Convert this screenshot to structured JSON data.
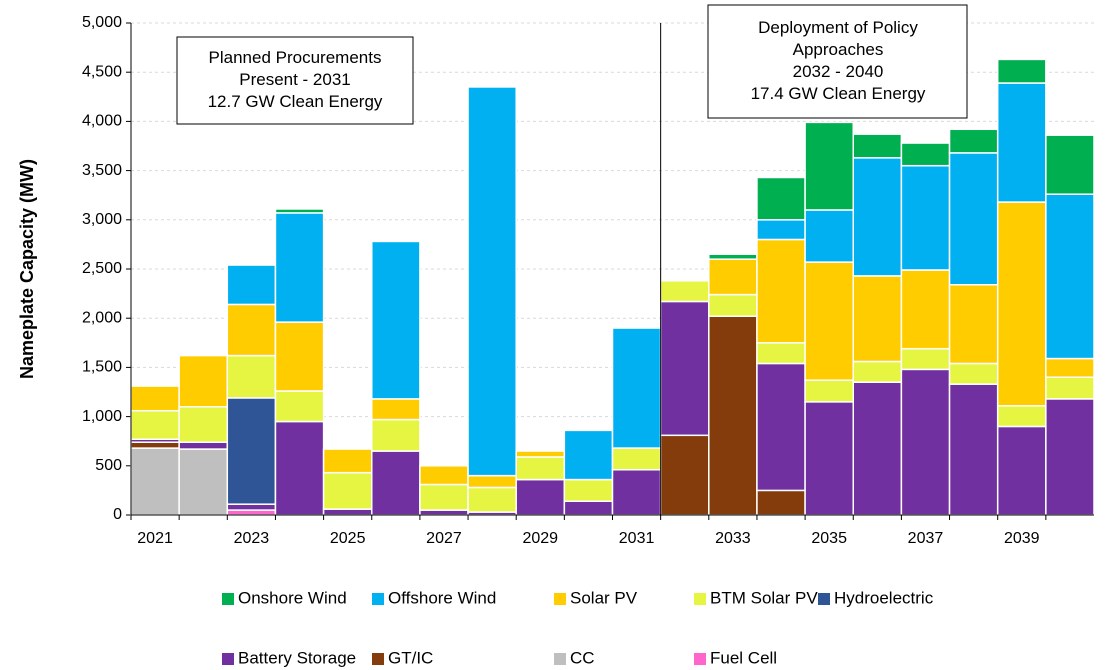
{
  "chart_data": {
    "type": "stacked_bar",
    "y_label": "Nameplate Capacity (MW)",
    "categories": [
      "2021",
      null,
      "2023",
      null,
      "2025",
      null,
      "2027",
      null,
      "2029",
      null,
      "2031",
      null,
      "2033",
      null,
      "2035",
      null,
      "2037",
      null,
      "2039",
      null
    ],
    "ylim": [
      0,
      5000
    ],
    "yticks": [
      0,
      500,
      {
        "value": 1000,
        "label": "1,000"
      },
      {
        "value": 1500,
        "label": "1,500"
      },
      {
        "value": 2000,
        "label": "2,000"
      },
      {
        "value": 2500,
        "label": "2,500"
      },
      {
        "value": 3000,
        "label": "3,000"
      },
      {
        "value": 3500,
        "label": "3,500"
      },
      {
        "value": 4000,
        "label": "4,000"
      },
      {
        "value": 4500,
        "label": "4,500"
      },
      {
        "value": 5000,
        "label": "5,000"
      }
    ],
    "grid": true,
    "legend": "bottom",
    "annotations": [
      {
        "lines": [
          "Planned Procurements",
          "Present - 2031",
          "12.7 GW Clean Energy"
        ]
      },
      {
        "lines": [
          "Deployment of Policy",
          "Approaches",
          "2032 - 2040",
          "17.4 GW Clean Energy"
        ]
      }
    ],
    "series": [
      {
        "name": "Onshore Wind",
        "color": "#00b050",
        "values": [
          0,
          0,
          0,
          40,
          0,
          0,
          0,
          0,
          0,
          0,
          0,
          0,
          50,
          430,
          890,
          240,
          230,
          240,
          240,
          600
        ]
      },
      {
        "name": "Offshore Wind",
        "color": "#00b0f0",
        "values": [
          0,
          0,
          400,
          1110,
          0,
          1600,
          0,
          3950,
          0,
          500,
          1220,
          0,
          0,
          200,
          530,
          1200,
          1060,
          1340,
          1210,
          1670
        ]
      },
      {
        "name": "Solar PV",
        "color": "#ffcc00",
        "values": [
          250,
          520,
          520,
          700,
          240,
          210,
          190,
          120,
          60,
          0,
          0,
          0,
          360,
          1050,
          1200,
          870,
          800,
          800,
          2070,
          190
        ]
      },
      {
        "name": "BTM Solar PV",
        "color": "#e5f542",
        "values": [
          290,
          360,
          430,
          310,
          370,
          320,
          260,
          250,
          230,
          220,
          220,
          210,
          220,
          210,
          220,
          210,
          210,
          210,
          210,
          220
        ]
      },
      {
        "name": "Hydroelectric",
        "color": "#2f5597",
        "values": [
          0,
          0,
          1080,
          0,
          0,
          0,
          0,
          0,
          0,
          0,
          0,
          0,
          0,
          0,
          0,
          0,
          0,
          0,
          0,
          0
        ]
      },
      {
        "name": "Battery Storage",
        "color": "#7030a0",
        "values": [
          30,
          70,
          60,
          950,
          60,
          650,
          50,
          30,
          360,
          140,
          460,
          1360,
          0,
          1290,
          1150,
          1350,
          1480,
          1330,
          900,
          1180
        ]
      },
      {
        "name": "GT/IC",
        "color": "#843c0c",
        "values": [
          60,
          0,
          0,
          0,
          0,
          0,
          0,
          0,
          0,
          0,
          0,
          810,
          2020,
          250,
          0,
          0,
          0,
          0,
          0,
          0
        ]
      },
      {
        "name": "CC",
        "color": "#bfbfbf",
        "values": [
          680,
          670,
          0,
          0,
          0,
          0,
          0,
          0,
          0,
          0,
          0,
          0,
          0,
          0,
          0,
          0,
          0,
          0,
          0,
          0
        ]
      },
      {
        "name": "Fuel Cell",
        "color": "#ff66cc",
        "values": [
          0,
          0,
          50,
          0,
          0,
          0,
          0,
          0,
          0,
          0,
          0,
          0,
          0,
          0,
          0,
          0,
          0,
          0,
          0,
          0
        ]
      }
    ]
  }
}
